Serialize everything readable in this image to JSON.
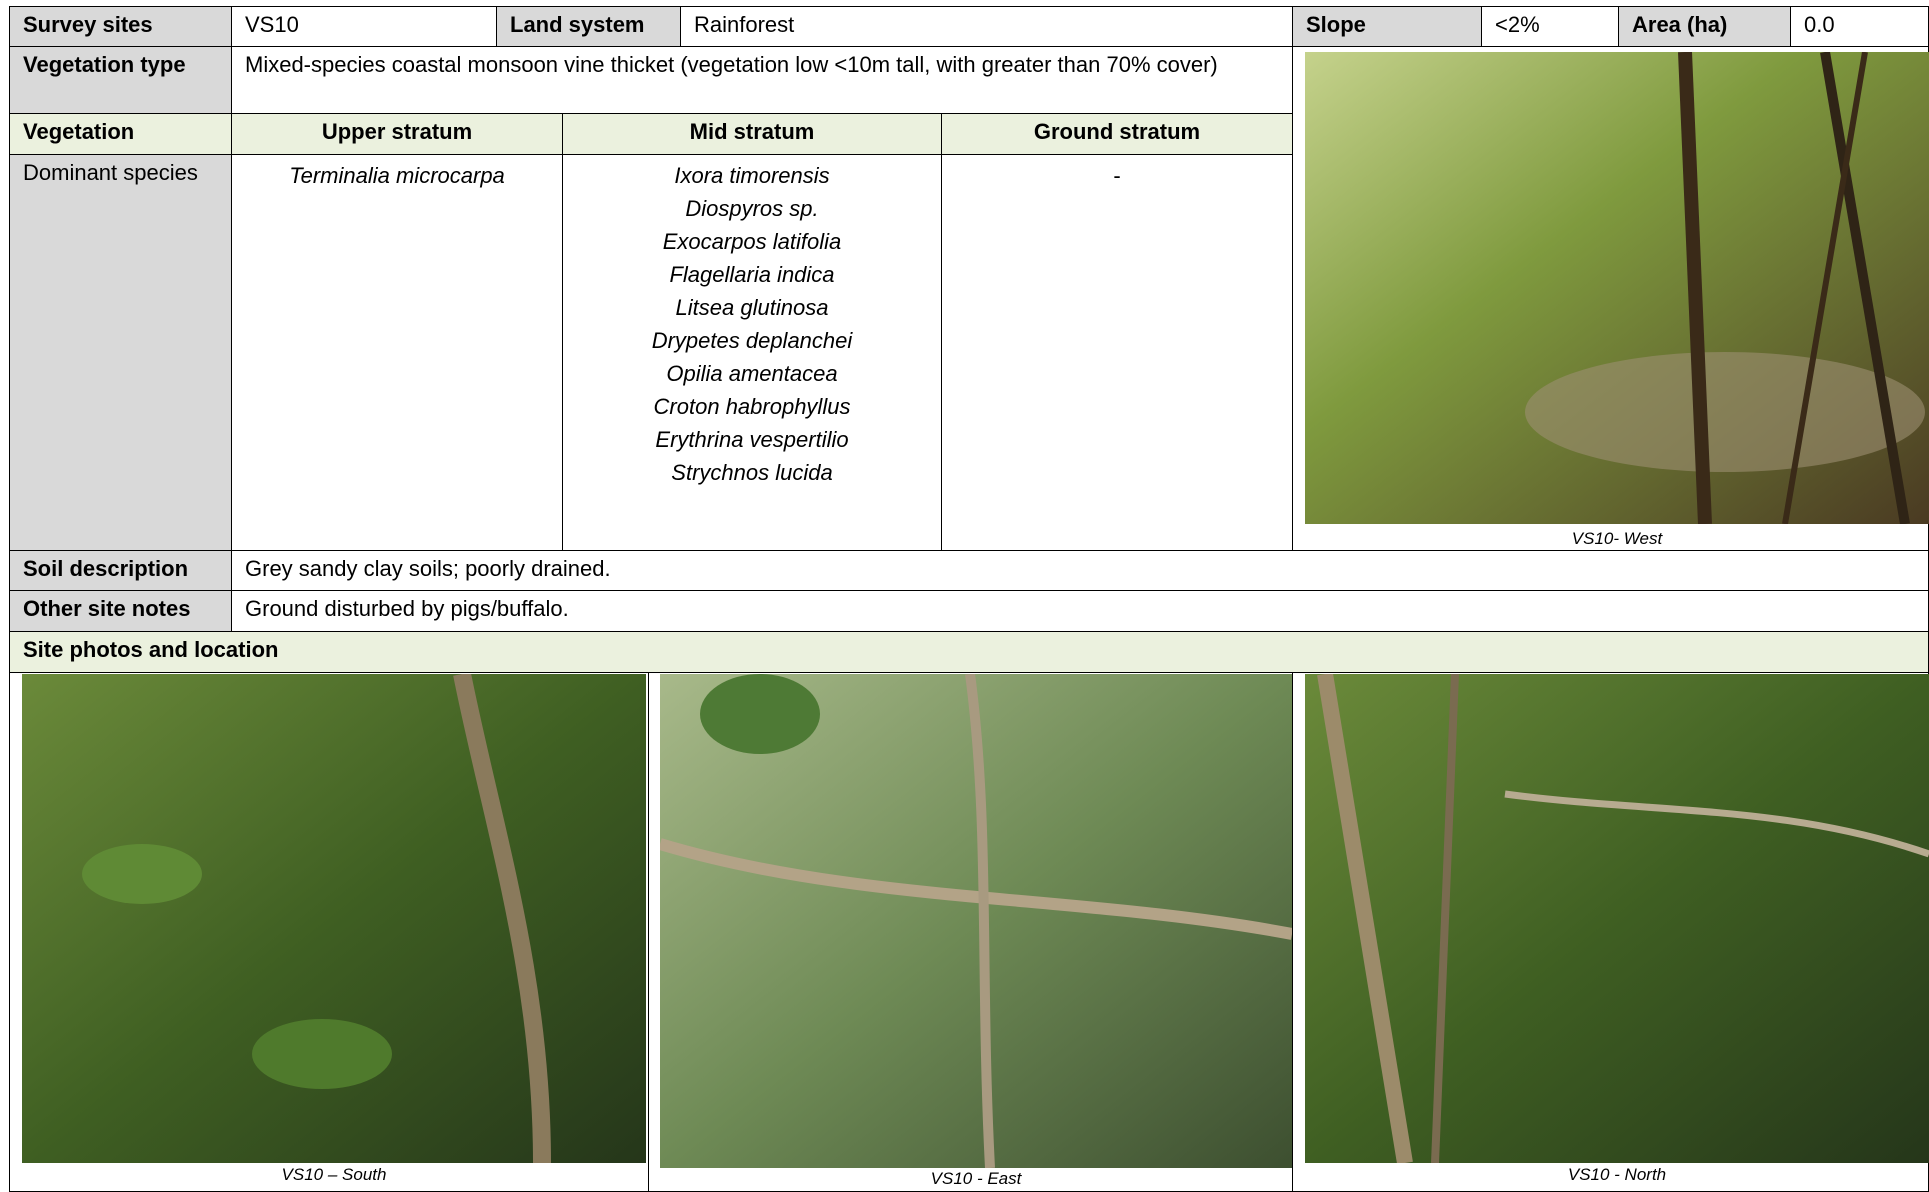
{
  "header": {
    "survey_sites_label": "Survey sites",
    "survey_sites_value": "VS10",
    "land_system_label": "Land system",
    "land_system_value": "Rainforest",
    "slope_label": "Slope",
    "slope_value": "<2%",
    "area_label": "Area (ha)",
    "area_value": "0.0"
  },
  "vegetation_type": {
    "label": "Vegetation type",
    "value": "Mixed-species coastal monsoon vine thicket (vegetation low <10m tall, with greater than 70% cover)"
  },
  "vegetation_table": {
    "headers": [
      "Vegetation",
      "Upper stratum",
      "Mid stratum",
      "Ground stratum"
    ],
    "dominant_species_label": "Dominant species",
    "upper_stratum": [
      "Terminalia microcarpa"
    ],
    "mid_stratum": [
      "Ixora timorensis",
      "Diospyros sp.",
      "Exocarpos latifolia",
      "Flagellaria indica",
      "Litsea glutinosa",
      "Drypetes deplanchei",
      "Opilia amentacea",
      "Croton habrophyllus",
      "Erythrina vespertilio",
      "Strychnos lucida"
    ],
    "ground_stratum": [
      "-"
    ]
  },
  "soil_description": {
    "label": "Soil description",
    "value": "Grey sandy clay soils; poorly drained."
  },
  "other_site_notes": {
    "label": "Other site notes",
    "value": "Ground disturbed by pigs/buffalo."
  },
  "site_photos": {
    "label": "Site photos and location",
    "captions": {
      "west": "VS10- West",
      "south": "VS10 – South",
      "east": "VS10 - East",
      "north": "VS10 - North"
    }
  }
}
